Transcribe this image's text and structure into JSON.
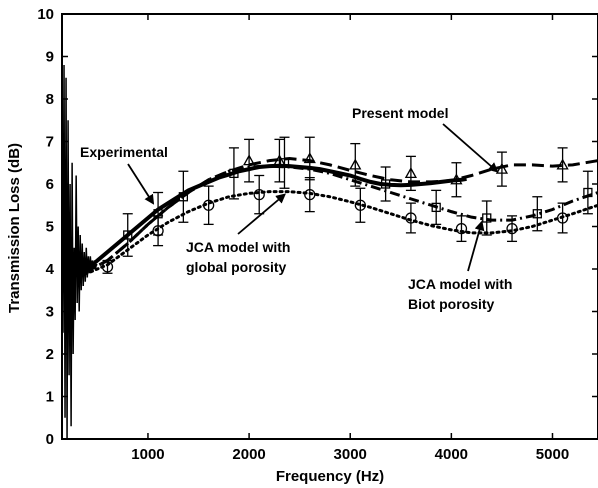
{
  "chart_data": {
    "type": "line",
    "title": "",
    "xlabel": "Frequency (Hz)",
    "ylabel": "Transmission Loss (dB)",
    "xlim": [
      150,
      5450
    ],
    "ylim": [
      0,
      10
    ],
    "xticks": [
      "1000",
      "2000",
      "3000",
      "4000",
      "5000"
    ],
    "xtick_values": [
      1000,
      2000,
      3000,
      4000,
      5000
    ],
    "yticks": [
      "0",
      "1",
      "2",
      "3",
      "4",
      "5",
      "6",
      "7",
      "8",
      "9",
      "10"
    ],
    "ytick_values": [
      0,
      1,
      2,
      3,
      4,
      5,
      6,
      7,
      8,
      9,
      10
    ],
    "grid": false,
    "legend": "none",
    "series": [
      {
        "name": "Experimental",
        "style": "solid",
        "color": "#000000",
        "x": [
          200,
          300,
          400,
          500,
          600,
          700,
          800,
          900,
          1000,
          1100,
          1200,
          1300,
          1400,
          1500,
          1600,
          1700,
          1800,
          1900,
          2000,
          2100,
          2200,
          2300,
          2400,
          2500,
          2600,
          2700,
          2800,
          2900,
          3000,
          3100,
          3200,
          3300,
          3400,
          3500,
          3600,
          3700,
          3800,
          3900,
          4000,
          4100,
          4150
        ],
        "y": [
          4.0,
          3.9,
          4.0,
          4.2,
          4.4,
          4.6,
          4.8,
          5.0,
          5.2,
          5.4,
          5.55,
          5.7,
          5.85,
          5.95,
          6.05,
          6.15,
          6.22,
          6.3,
          6.35,
          6.4,
          6.42,
          6.43,
          6.42,
          6.4,
          6.38,
          6.35,
          6.3,
          6.25,
          6.2,
          6.12,
          6.05,
          6.0,
          5.98,
          5.97,
          5.98,
          6.0,
          6.02,
          6.05,
          6.08,
          6.1,
          6.12
        ]
      },
      {
        "name": "Present model",
        "style": "dashed",
        "color": "#000000",
        "x": [
          200,
          400,
          600,
          800,
          1000,
          1200,
          1400,
          1600,
          1800,
          2000,
          2200,
          2400,
          2600,
          2800,
          3000,
          3200,
          3400,
          3600,
          3800,
          4000,
          4200,
          4400,
          4600,
          4800,
          5000,
          5200,
          5450
        ],
        "y": [
          3.9,
          3.95,
          4.2,
          4.6,
          5.05,
          5.45,
          5.8,
          6.1,
          6.3,
          6.45,
          6.55,
          6.6,
          6.55,
          6.45,
          6.32,
          6.2,
          6.1,
          6.05,
          6.05,
          6.08,
          6.2,
          6.35,
          6.45,
          6.45,
          6.42,
          6.45,
          6.55
        ]
      },
      {
        "name": "JCA model with Biot porosity",
        "style": "dashdot",
        "color": "#000000",
        "x": [
          200,
          400,
          600,
          800,
          1000,
          1200,
          1400,
          1600,
          1800,
          2000,
          2200,
          2400,
          2600,
          2800,
          3000,
          3200,
          3400,
          3600,
          3800,
          4000,
          4200,
          4400,
          4600,
          4800,
          5000,
          5200,
          5450
        ],
        "y": [
          3.9,
          3.95,
          4.2,
          4.6,
          5.05,
          5.45,
          5.8,
          6.1,
          6.3,
          6.4,
          6.42,
          6.4,
          6.35,
          6.25,
          6.1,
          5.95,
          5.8,
          5.65,
          5.5,
          5.35,
          5.22,
          5.15,
          5.15,
          5.25,
          5.4,
          5.6,
          5.8
        ]
      },
      {
        "name": "JCA model with global porosity",
        "style": "dotted",
        "color": "#000000",
        "x": [
          200,
          400,
          600,
          800,
          1000,
          1200,
          1400,
          1600,
          1800,
          2000,
          2200,
          2400,
          2600,
          2800,
          3000,
          3200,
          3400,
          3600,
          3800,
          4000,
          4200,
          4400,
          4600,
          4800,
          5000,
          5200,
          5450
        ],
        "y": [
          3.85,
          3.9,
          4.1,
          4.45,
          4.8,
          5.1,
          5.35,
          5.55,
          5.7,
          5.78,
          5.82,
          5.82,
          5.78,
          5.7,
          5.58,
          5.45,
          5.3,
          5.15,
          5.02,
          4.92,
          4.85,
          4.85,
          4.9,
          5.0,
          5.15,
          5.3,
          5.5
        ]
      }
    ],
    "error_bars": {
      "triangle_markers": {
        "x": [
          2000,
          2300,
          2600,
          3050,
          3600,
          4050,
          4500,
          5100
        ],
        "y": [
          6.55,
          6.55,
          6.6,
          6.45,
          6.25,
          6.1,
          6.35,
          6.45
        ],
        "err": [
          0.5,
          0.5,
          0.5,
          0.5,
          0.4,
          0.4,
          0.4,
          0.4
        ]
      },
      "square_markers": {
        "x": [
          800,
          1100,
          1350,
          1850,
          2350,
          3350,
          3850,
          4350,
          4850,
          5350
        ],
        "y": [
          4.8,
          5.3,
          5.7,
          6.25,
          6.5,
          6.0,
          5.45,
          5.2,
          5.3,
          5.8
        ],
        "err": [
          0.5,
          0.5,
          0.6,
          0.6,
          0.6,
          0.4,
          0.4,
          0.4,
          0.4,
          0.5
        ]
      },
      "circle_markers": {
        "x": [
          600,
          1100,
          1600,
          2100,
          2600,
          3100,
          3600,
          4100,
          4600,
          5100
        ],
        "y": [
          4.05,
          4.9,
          5.5,
          5.75,
          5.75,
          5.5,
          5.2,
          4.95,
          4.95,
          5.2
        ],
        "err": [
          0.15,
          0.35,
          0.45,
          0.45,
          0.4,
          0.4,
          0.35,
          0.3,
          0.3,
          0.35
        ]
      }
    },
    "noise": {
      "x": [
        150,
        160,
        170,
        180,
        190,
        200,
        210,
        220,
        230,
        240,
        250,
        260,
        270,
        280,
        290,
        300,
        310,
        320,
        330,
        340,
        350,
        360,
        370,
        380,
        390,
        400,
        410,
        420,
        430,
        440,
        450,
        460,
        470,
        480,
        490,
        500
      ],
      "y": [
        7.8,
        2.5,
        8.8,
        0.5,
        8.5,
        0.0,
        7.5,
        1.5,
        6.0,
        0.3,
        6.5,
        2.0,
        4.5,
        2.8,
        6.2,
        3.2,
        5.0,
        3.0,
        4.8,
        3.5,
        4.6,
        3.6,
        4.4,
        3.7,
        4.5,
        3.8,
        4.3,
        3.9,
        4.3,
        4.0,
        4.2,
        4.0,
        4.2,
        4.0,
        4.1,
        4.1
      ]
    },
    "annotations": [
      {
        "text": "Present model",
        "arrow_to": [
          4450,
          6.3
        ]
      },
      {
        "text": "Experimental",
        "arrow_to": [
          1050,
          5.55
        ]
      },
      {
        "text": "JCA model with",
        "text2": "global porosity",
        "arrow_to": [
          2350,
          5.75
        ]
      },
      {
        "text": "JCA model with",
        "text2": "Biot porosity",
        "arrow_to": [
          4300,
          5.1
        ]
      }
    ]
  }
}
